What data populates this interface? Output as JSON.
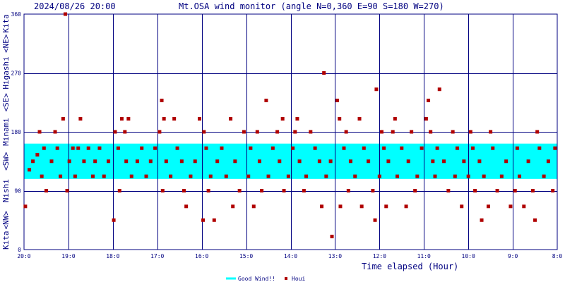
{
  "header": {
    "timestamp": "2024/08/26 20:00",
    "title": "Mt.OSA wind monitor (angle N=0,360 E=90 S=180 W=270)"
  },
  "colors": {
    "frame": "#000080",
    "text": "#000080",
    "band": "#00ffff",
    "marker": "#b00000",
    "background": "#ffffff"
  },
  "left_labels": [
    "Kita",
    "<NW>",
    "Nishi",
    "<SW>",
    "Minami",
    "<SE>",
    "Higashi",
    "<NE>",
    "Kita"
  ],
  "chart_data": {
    "type": "scatter",
    "title": "Mt.OSA wind monitor (angle N=0,360 E=90 S=180 W=270)",
    "xlabel": "Time elapsed (Hour)",
    "ylabel": "",
    "xlim": [
      0,
      12
    ],
    "ylim": [
      0,
      360
    ],
    "x_unit": "hours before 2024/08/26 20:00",
    "y_ticks": [
      0,
      90,
      180,
      270,
      360
    ],
    "x_ticks": [
      "20:0",
      "19:0",
      "18:0",
      "17:0",
      "16:0",
      "15:0",
      "14:0",
      "13:0",
      "12:0",
      "11:0",
      "10:0",
      "9:0",
      "8:0"
    ],
    "grid": true,
    "band": {
      "name": "Good Wind!!",
      "from": 108,
      "to": 162
    },
    "series": [
      {
        "name": "Houi",
        "points": [
          [
            0.03,
            66
          ],
          [
            0.12,
            122
          ],
          [
            0.2,
            135
          ],
          [
            0.3,
            145
          ],
          [
            0.35,
            180
          ],
          [
            0.4,
            112
          ],
          [
            0.45,
            155
          ],
          [
            0.5,
            90
          ],
          [
            0.62,
            135
          ],
          [
            0.7,
            180
          ],
          [
            0.75,
            155
          ],
          [
            0.82,
            112
          ],
          [
            0.88,
            200
          ],
          [
            0.93,
            360
          ],
          [
            0.97,
            90
          ],
          [
            1.02,
            135
          ],
          [
            1.1,
            155
          ],
          [
            1.15,
            112
          ],
          [
            1.22,
            155
          ],
          [
            1.27,
            200
          ],
          [
            1.35,
            135
          ],
          [
            1.45,
            155
          ],
          [
            1.55,
            112
          ],
          [
            1.6,
            135
          ],
          [
            1.7,
            155
          ],
          [
            1.8,
            112
          ],
          [
            1.9,
            135
          ],
          [
            2.02,
            45
          ],
          [
            2.05,
            180
          ],
          [
            2.12,
            155
          ],
          [
            2.15,
            90
          ],
          [
            2.2,
            200
          ],
          [
            2.27,
            180
          ],
          [
            2.3,
            135
          ],
          [
            2.35,
            200
          ],
          [
            2.42,
            112
          ],
          [
            2.55,
            135
          ],
          [
            2.65,
            155
          ],
          [
            2.75,
            112
          ],
          [
            2.85,
            135
          ],
          [
            2.95,
            155
          ],
          [
            3.05,
            180
          ],
          [
            3.1,
            228
          ],
          [
            3.12,
            90
          ],
          [
            3.15,
            200
          ],
          [
            3.2,
            135
          ],
          [
            3.3,
            112
          ],
          [
            3.38,
            200
          ],
          [
            3.45,
            155
          ],
          [
            3.55,
            135
          ],
          [
            3.6,
            90
          ],
          [
            3.65,
            66
          ],
          [
            3.75,
            112
          ],
          [
            3.85,
            135
          ],
          [
            3.95,
            200
          ],
          [
            4.03,
            45
          ],
          [
            4.05,
            180
          ],
          [
            4.1,
            155
          ],
          [
            4.15,
            90
          ],
          [
            4.2,
            112
          ],
          [
            4.28,
            45
          ],
          [
            4.35,
            135
          ],
          [
            4.45,
            155
          ],
          [
            4.55,
            112
          ],
          [
            4.65,
            200
          ],
          [
            4.7,
            66
          ],
          [
            4.75,
            135
          ],
          [
            4.85,
            90
          ],
          [
            4.95,
            180
          ],
          [
            5.05,
            112
          ],
          [
            5.1,
            155
          ],
          [
            5.17,
            66
          ],
          [
            5.25,
            180
          ],
          [
            5.3,
            135
          ],
          [
            5.35,
            90
          ],
          [
            5.45,
            228
          ],
          [
            5.5,
            112
          ],
          [
            5.6,
            155
          ],
          [
            5.7,
            180
          ],
          [
            5.75,
            135
          ],
          [
            5.82,
            200
          ],
          [
            5.85,
            90
          ],
          [
            5.95,
            112
          ],
          [
            6.05,
            155
          ],
          [
            6.1,
            180
          ],
          [
            6.15,
            200
          ],
          [
            6.2,
            135
          ],
          [
            6.3,
            90
          ],
          [
            6.35,
            112
          ],
          [
            6.45,
            180
          ],
          [
            6.55,
            155
          ],
          [
            6.65,
            135
          ],
          [
            6.7,
            66
          ],
          [
            6.75,
            270
          ],
          [
            6.8,
            112
          ],
          [
            6.9,
            135
          ],
          [
            6.93,
            20
          ],
          [
            7.05,
            228
          ],
          [
            7.1,
            200
          ],
          [
            7.12,
            66
          ],
          [
            7.2,
            155
          ],
          [
            7.25,
            180
          ],
          [
            7.3,
            90
          ],
          [
            7.35,
            135
          ],
          [
            7.45,
            112
          ],
          [
            7.55,
            200
          ],
          [
            7.6,
            66
          ],
          [
            7.65,
            155
          ],
          [
            7.75,
            135
          ],
          [
            7.85,
            90
          ],
          [
            7.9,
            45
          ],
          [
            7.93,
            245
          ],
          [
            8.0,
            112
          ],
          [
            8.05,
            180
          ],
          [
            8.1,
            155
          ],
          [
            8.15,
            66
          ],
          [
            8.2,
            135
          ],
          [
            8.3,
            180
          ],
          [
            8.35,
            200
          ],
          [
            8.4,
            112
          ],
          [
            8.5,
            155
          ],
          [
            8.6,
            66
          ],
          [
            8.65,
            135
          ],
          [
            8.72,
            180
          ],
          [
            8.8,
            90
          ],
          [
            8.85,
            112
          ],
          [
            8.95,
            155
          ],
          [
            9.05,
            200
          ],
          [
            9.1,
            228
          ],
          [
            9.15,
            180
          ],
          [
            9.2,
            135
          ],
          [
            9.25,
            112
          ],
          [
            9.3,
            155
          ],
          [
            9.35,
            245
          ],
          [
            9.45,
            135
          ],
          [
            9.55,
            90
          ],
          [
            9.65,
            180
          ],
          [
            9.7,
            112
          ],
          [
            9.75,
            155
          ],
          [
            9.85,
            66
          ],
          [
            9.9,
            135
          ],
          [
            10.0,
            112
          ],
          [
            10.05,
            180
          ],
          [
            10.1,
            155
          ],
          [
            10.15,
            90
          ],
          [
            10.25,
            135
          ],
          [
            10.3,
            45
          ],
          [
            10.35,
            112
          ],
          [
            10.45,
            66
          ],
          [
            10.5,
            180
          ],
          [
            10.55,
            155
          ],
          [
            10.65,
            90
          ],
          [
            10.75,
            112
          ],
          [
            10.85,
            135
          ],
          [
            10.95,
            66
          ],
          [
            11.05,
            90
          ],
          [
            11.1,
            155
          ],
          [
            11.15,
            112
          ],
          [
            11.25,
            66
          ],
          [
            11.35,
            135
          ],
          [
            11.45,
            90
          ],
          [
            11.5,
            45
          ],
          [
            11.55,
            180
          ],
          [
            11.6,
            155
          ],
          [
            11.7,
            112
          ],
          [
            11.8,
            135
          ],
          [
            11.9,
            90
          ],
          [
            11.95,
            155
          ]
        ]
      }
    ],
    "legend": [
      {
        "label": "Good Wind!!",
        "kind": "line"
      },
      {
        "label": "Houi",
        "kind": "square"
      }
    ]
  }
}
